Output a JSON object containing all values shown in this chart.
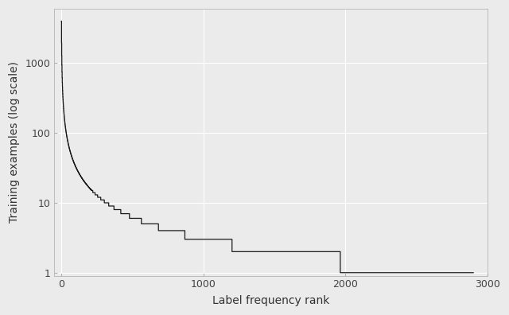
{
  "xlabel": "Label frequency rank",
  "ylabel": "Training examples (log scale)",
  "background_color": "#EBEBEB",
  "grid_color": "#FFFFFF",
  "line_color": "#1A1A1A",
  "xmin": -50,
  "xmax": 3000,
  "ymin": 0.9,
  "ymax": 6000,
  "x_ticks": [
    0,
    1000,
    2000,
    3000
  ],
  "y_ticks": [
    1,
    10,
    100,
    1000
  ],
  "max_value": 4000,
  "n_labels": 2900,
  "label_fontsize": 10,
  "tick_fontsize": 9,
  "power_law_alpha": 1.3,
  "smooth_threshold": 15
}
